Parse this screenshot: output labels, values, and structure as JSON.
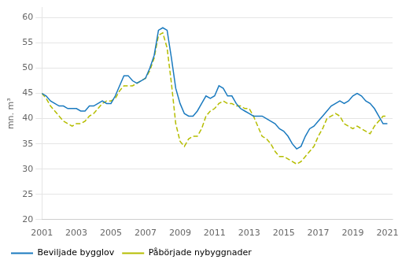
{
  "chart_data": {
    "type": "line",
    "ylabel": "mn. m³",
    "x": [
      2001.0,
      2001.25,
      2001.5,
      2001.75,
      2002.0,
      2002.25,
      2002.5,
      2002.75,
      2003.0,
      2003.25,
      2003.5,
      2003.75,
      2004.0,
      2004.25,
      2004.5,
      2004.75,
      2005.0,
      2005.25,
      2005.5,
      2005.75,
      2006.0,
      2006.25,
      2006.5,
      2006.75,
      2007.0,
      2007.25,
      2007.5,
      2007.75,
      2008.0,
      2008.25,
      2008.5,
      2008.75,
      2009.0,
      2009.25,
      2009.5,
      2009.75,
      2010.0,
      2010.25,
      2010.5,
      2010.75,
      2011.0,
      2011.25,
      2011.5,
      2011.75,
      2012.0,
      2012.25,
      2012.5,
      2012.75,
      2013.0,
      2013.25,
      2013.5,
      2013.75,
      2014.0,
      2014.25,
      2014.5,
      2014.75,
      2015.0,
      2015.25,
      2015.5,
      2015.75,
      2016.0,
      2016.25,
      2016.5,
      2016.75,
      2017.0,
      2017.25,
      2017.5,
      2017.75,
      2018.0,
      2018.25,
      2018.5,
      2018.75,
      2019.0,
      2019.25,
      2019.5,
      2019.75,
      2020.0,
      2020.25,
      2020.5,
      2020.75,
      2021.0
    ],
    "series": [
      {
        "name": "Beviljade bygglov",
        "color": "#1a7abf",
        "line_style": "solid",
        "values": [
          45.0,
          44.5,
          43.5,
          43.0,
          42.5,
          42.5,
          42.0,
          42.0,
          42.0,
          41.5,
          41.5,
          42.5,
          42.5,
          43.0,
          43.5,
          43.0,
          43.0,
          44.5,
          46.5,
          48.5,
          48.5,
          47.5,
          47.0,
          47.5,
          48.0,
          50.0,
          52.5,
          57.5,
          58.0,
          57.5,
          52.0,
          46.0,
          43.0,
          41.0,
          40.5,
          40.5,
          41.5,
          43.0,
          44.5,
          44.0,
          44.5,
          46.5,
          46.0,
          44.5,
          44.5,
          43.0,
          42.0,
          41.5,
          41.0,
          40.5,
          40.5,
          40.5,
          40.0,
          39.5,
          39.0,
          38.0,
          37.5,
          36.5,
          35.0,
          34.0,
          34.5,
          36.5,
          38.0,
          38.5,
          39.5,
          40.5,
          41.5,
          42.5,
          43.0,
          43.5,
          43.0,
          43.5,
          44.5,
          45.0,
          44.5,
          43.5,
          43.0,
          42.0,
          40.5,
          39.0,
          39.0
        ]
      },
      {
        "name": "Påbörjade nybyggnader",
        "color": "#b5bd00",
        "line_style": "dashed",
        "values": [
          45.0,
          44.0,
          42.5,
          41.5,
          40.5,
          39.5,
          39.0,
          38.5,
          39.0,
          39.0,
          39.5,
          40.5,
          41.0,
          42.0,
          43.0,
          43.5,
          43.5,
          44.0,
          45.5,
          46.5,
          46.5,
          46.5,
          47.0,
          47.5,
          48.0,
          49.5,
          52.0,
          56.5,
          57.0,
          54.0,
          47.0,
          39.0,
          35.5,
          34.5,
          36.0,
          36.5,
          36.5,
          38.0,
          40.5,
          41.5,
          42.0,
          43.0,
          43.5,
          43.0,
          43.0,
          42.5,
          42.5,
          42.0,
          42.0,
          40.5,
          38.5,
          36.5,
          36.0,
          35.0,
          33.5,
          32.5,
          32.5,
          32.0,
          31.5,
          31.0,
          31.5,
          32.5,
          33.5,
          34.5,
          36.5,
          38.0,
          40.0,
          40.5,
          41.0,
          40.5,
          39.0,
          38.5,
          38.0,
          38.5,
          38.0,
          37.5,
          37.0,
          38.5,
          39.5,
          40.5,
          40.5
        ]
      }
    ],
    "xlim": [
      2001,
      2021.3
    ],
    "xticks": [
      2001,
      2003,
      2005,
      2007,
      2009,
      2011,
      2013,
      2015,
      2017,
      2019,
      2021
    ],
    "ylim": [
      20,
      62
    ],
    "yticks": [
      20,
      25,
      30,
      35,
      40,
      45,
      50,
      55,
      60
    ],
    "grid": true,
    "legend": "lower left"
  }
}
